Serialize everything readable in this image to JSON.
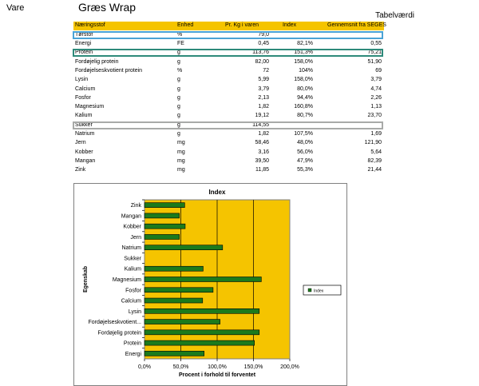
{
  "header": {
    "vare_label": "Vare",
    "product_title": "Græs Wrap",
    "tabel_title": "Tabelværdi"
  },
  "table": {
    "columns": [
      "Næringsstof",
      "Enhed",
      "Pr. Kg i varen",
      "Index",
      "Gennemsnit fra SEGES"
    ],
    "rows": [
      {
        "name": "Tørstof",
        "unit": "%",
        "pr_kg": "79,0",
        "index": "",
        "gennemsnit": ""
      },
      {
        "name": "Energi",
        "unit": "FE",
        "pr_kg": "0,45",
        "index": "82,1%",
        "gennemsnit": "0,55"
      },
      {
        "name": "Protein",
        "unit": "g",
        "pr_kg": "113,76",
        "index": "151,3%",
        "gennemsnit": "75,21"
      },
      {
        "name": "Fordøjelig protein",
        "unit": "g",
        "pr_kg": "82,00",
        "index": "158,0%",
        "gennemsnit": "51,90"
      },
      {
        "name": "Fordøjelseskvotient protein",
        "unit": "%",
        "pr_kg": "72",
        "index": "104%",
        "gennemsnit": "69"
      },
      {
        "name": "Lysin",
        "unit": "g",
        "pr_kg": "5,99",
        "index": "158,0%",
        "gennemsnit": "3,79"
      },
      {
        "name": "Calcium",
        "unit": "g",
        "pr_kg": "3,79",
        "index": "80,0%",
        "gennemsnit": "4,74"
      },
      {
        "name": "Fosfor",
        "unit": "g",
        "pr_kg": "2,13",
        "index": "94,4%",
        "gennemsnit": "2,26"
      },
      {
        "name": "Magnesium",
        "unit": "g",
        "pr_kg": "1,82",
        "index": "160,8%",
        "gennemsnit": "1,13"
      },
      {
        "name": "Kalium",
        "unit": "g",
        "pr_kg": "19,12",
        "index": "80,7%",
        "gennemsnit": "23,70"
      },
      {
        "name": "Sukker",
        "unit": "g",
        "pr_kg": "114,55",
        "index": "",
        "gennemsnit": ""
      },
      {
        "name": "Natrium",
        "unit": "g",
        "pr_kg": "1,82",
        "index": "107,5%",
        "gennemsnit": "1,69"
      },
      {
        "name": "Jern",
        "unit": "mg",
        "pr_kg": "58,46",
        "index": "48,0%",
        "gennemsnit": "121,90"
      },
      {
        "name": "Kobber",
        "unit": "mg",
        "pr_kg": "3,16",
        "index": "56,0%",
        "gennemsnit": "5,64"
      },
      {
        "name": "Mangan",
        "unit": "mg",
        "pr_kg": "39,50",
        "index": "47,9%",
        "gennemsnit": "82,39"
      },
      {
        "name": "Zink",
        "unit": "mg",
        "pr_kg": "11,85",
        "index": "55,3%",
        "gennemsnit": "21,44"
      }
    ],
    "highlighted_rows": [
      {
        "row": "Tørstof",
        "color": "#4aa3d6"
      },
      {
        "row": "Protein",
        "color": "#2e8a7a"
      },
      {
        "row": "Sukker",
        "color": "#a8aaa8"
      }
    ]
  },
  "chart_data": {
    "type": "bar",
    "orientation": "horizontal",
    "title": "Index",
    "xlabel": "Procent i forhold til forventet",
    "ylabel": "Egenskab",
    "xlim": [
      0,
      200
    ],
    "xticks": [
      "0,0%",
      "50,0%",
      "100,0%",
      "150,0%",
      "200,0%"
    ],
    "categories": [
      "Zink",
      "Mangan",
      "Kobber",
      "Jern",
      "Natrium",
      "Sukker",
      "Kalium",
      "Magnesium",
      "Fosfor",
      "Calcium",
      "Lysin",
      "Fordøjelseskvotient...",
      "Fordøjelig protein",
      "Protein",
      "Energi"
    ],
    "series": [
      {
        "name": "Index",
        "values": [
          55.3,
          47.9,
          56.0,
          48.0,
          107.5,
          0,
          80.7,
          160.8,
          94.4,
          80.0,
          158.0,
          104,
          158.0,
          151.3,
          82.1
        ]
      }
    ],
    "legend_position": "right",
    "grid": true,
    "colors": {
      "plot_bg": "#f5c400",
      "bar": "#1c7a1c"
    }
  }
}
